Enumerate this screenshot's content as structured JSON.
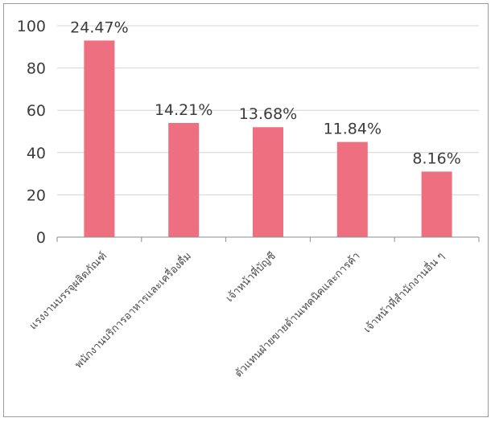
{
  "chart_data": {
    "type": "bar",
    "categories": [
      "แรงงานบรรจุผลิตภัณฑ์",
      "พนักงานบริการอาหารและเครื่องดื่ม",
      "เจ้าหน้าที่บัญชี",
      "ตัวแทนฝ่ายขายด้านเทคนิคและการค้า",
      "เจ้าหน้าที่สำนักงานอื่น ๆ"
    ],
    "values": [
      93,
      54,
      52,
      45,
      31
    ],
    "data_labels": [
      "24.47%",
      "14.21%",
      "13.68%",
      "11.84%",
      "8.16%"
    ],
    "ylim": [
      0,
      100
    ],
    "yticks": [
      0,
      20,
      40,
      60,
      80,
      100
    ],
    "grid": true,
    "legend": "none",
    "colors": {
      "bar": "#ee6f7f",
      "grid": "#d4d4d4",
      "axis": "#8c8c8c"
    }
  }
}
